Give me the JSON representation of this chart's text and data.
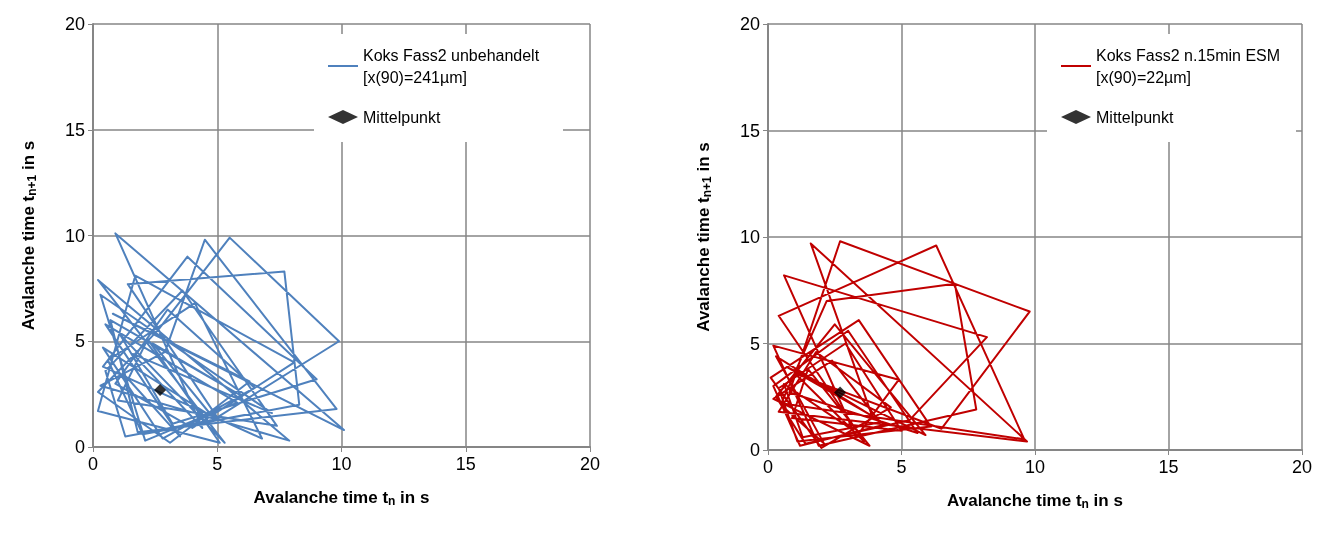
{
  "chart_data": [
    {
      "type": "line",
      "xlabel": "Avalanche time t$_{n}$ in s",
      "ylabel": "Avalanche time t$_{n+1}$ in s",
      "xlim": [
        0,
        20
      ],
      "ylim": [
        0,
        20
      ],
      "xticks": [
        0,
        5,
        10,
        15,
        20
      ],
      "yticks": [
        0,
        5,
        10,
        15,
        20
      ],
      "grid": true,
      "legend": "top right",
      "series": [
        {
          "name": "Koks Fass2 unbehandelt [x(90)=241µm]",
          "color": "#4f81bd",
          "marker": "none",
          "x": [
            1.2,
            3.5,
            0.5,
            5.8,
            2.1,
            0.3,
            7.2,
            1.6,
            4.4,
            0.9,
            10.1,
            0.8,
            6.3,
            3.1,
            0.2,
            2.6,
            5.5,
            9.9,
            5.0,
            1.4,
            7.7,
            8.3,
            2.0,
            0.6,
            4.1,
            6.8,
            0.4,
            3.8,
            9.0,
            3.2,
            1.1,
            5.3,
            0.2,
            7.9,
            0.3,
            2.9,
            4.5,
            9.8,
            1.8,
            0.7,
            6.0,
            2.4,
            4.9,
            1.3,
            0.5,
            3.6,
            7.4,
            1.0,
            2.2,
            5.1,
            0.2,
            1.7,
            8.1,
            4.0,
            0.9,
            3.0,
            6.5,
            2.8,
            0.4,
            4.7
          ],
          "values": [
            3.5,
            0.5,
            5.8,
            2.1,
            0.3,
            7.2,
            1.6,
            4.4,
            0.9,
            10.1,
            0.8,
            6.3,
            3.1,
            0.2,
            2.6,
            5.5,
            9.9,
            5.0,
            1.4,
            7.7,
            8.3,
            2.0,
            0.6,
            4.1,
            6.8,
            0.4,
            3.8,
            9.0,
            3.2,
            1.1,
            5.3,
            0.2,
            7.9,
            0.3,
            2.9,
            4.5,
            9.8,
            1.8,
            0.7,
            6.0,
            2.4,
            4.9,
            1.3,
            0.5,
            3.6,
            7.4,
            1.0,
            2.2,
            5.1,
            0.2,
            1.7,
            8.1,
            4.0,
            0.9,
            3.0,
            6.5,
            2.8,
            0.4,
            4.7,
            1.5
          ]
        },
        {
          "type": "scatter",
          "name": "Mittelpunkt",
          "color": "#000000",
          "marker": "diamond",
          "x": [
            2.7
          ],
          "values": [
            2.7
          ]
        }
      ]
    },
    {
      "type": "line",
      "xlabel": "Avalanche time t$_{n}$ in s",
      "ylabel": "Avalanche time t$_{n+1}$ in s",
      "xlim": [
        0,
        20
      ],
      "ylim": [
        0,
        20
      ],
      "xticks": [
        0,
        5,
        10,
        15,
        20
      ],
      "yticks": [
        0,
        5,
        10,
        15,
        20
      ],
      "grid": true,
      "legend": "top right",
      "series": [
        {
          "name": "Koks Fass2 n.15min ESM [x(90)=22µm]",
          "color": "#c00000",
          "marker": "none",
          "x": [
            0.5,
            2.1,
            0.3,
            4.4,
            1.2,
            0.2,
            3.0,
            5.6,
            0.8,
            2.7,
            9.8,
            6.5,
            1.0,
            3.6,
            0.4,
            6.3,
            9.6,
            0.5,
            2.2,
            7.0,
            7.8,
            1.9,
            0.2,
            4.9,
            3.3,
            0.6,
            8.2,
            5.3,
            1.4,
            0.3,
            2.5,
            5.9,
            0.7,
            3.9,
            1.6,
            9.7,
            0.4,
            1.8,
            4.6,
            2.0,
            0.1,
            3.4,
            6.1,
            1.1,
            0.4,
            2.9,
            5.0,
            0.9,
            1.5,
            3.8,
            0.2,
            2.4,
            4.2,
            1.3,
            0.6,
            3.1
          ],
          "values": [
            2.1,
            0.3,
            4.4,
            1.2,
            0.2,
            3.0,
            5.6,
            0.8,
            2.7,
            9.8,
            6.5,
            1.0,
            3.6,
            0.4,
            6.3,
            9.6,
            0.5,
            2.2,
            7.0,
            7.8,
            1.9,
            0.2,
            4.9,
            3.3,
            0.6,
            8.2,
            5.3,
            1.4,
            0.3,
            2.5,
            5.9,
            0.7,
            3.9,
            1.6,
            9.7,
            0.4,
            1.8,
            4.6,
            2.0,
            0.1,
            3.4,
            6.1,
            1.1,
            0.4,
            2.9,
            5.0,
            0.9,
            1.5,
            3.8,
            0.2,
            2.4,
            4.2,
            1.3,
            0.6,
            3.1,
            1.0
          ]
        },
        {
          "type": "scatter",
          "name": "Mittelpunkt",
          "color": "#000000",
          "marker": "diamond",
          "x": [
            2.7
          ],
          "values": [
            2.7
          ]
        }
      ]
    }
  ]
}
